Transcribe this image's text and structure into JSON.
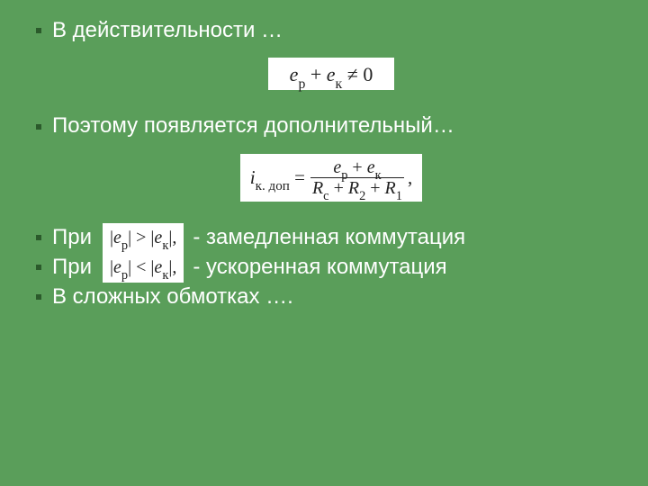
{
  "colors": {
    "background": "#5a9e5a",
    "text": "#ffffff",
    "bullet": "#2b5a2b",
    "formula_bg": "#ffffff",
    "formula_text": "#222222"
  },
  "typography": {
    "body_font": "Arial",
    "formula_font": "Times New Roman",
    "body_size_pt": 24,
    "formula_size_pt": 21
  },
  "bullets": {
    "b1": "В действительности …",
    "b2": "Поэтому появляется дополнительный…",
    "b3_lead": "При",
    "b3_trail": "- замедленная коммутация",
    "b4_lead": "При",
    "b4_trail": "- ускоренная коммутация",
    "b5": "В сложных обмотках …."
  },
  "formulas": {
    "f1_html": "<i>e</i><sub>р</sub> + <i>e</i><sub>к</sub> ≠ 0",
    "f2_lhs_html": "<i>i</i><sub>к. доп</sub> =",
    "f2_num_html": "<i>e</i><sub>р</sub> + <i>e</i><sub>к</sub>",
    "f2_den_html": "<i>R</i><sub>c</sub> + <i>R</i><sub>2</sub> + <i>R</i><sub>1</sub>",
    "f2_tail": ",",
    "f3_inline_html": "|<i>e</i><sub>р</sub>| &gt; |<i>e</i><sub>к</sub>|,",
    "f4_inline_html": "|<i>e</i><sub>р</sub>| &lt; |<i>e</i><sub>к</sub>|,"
  }
}
